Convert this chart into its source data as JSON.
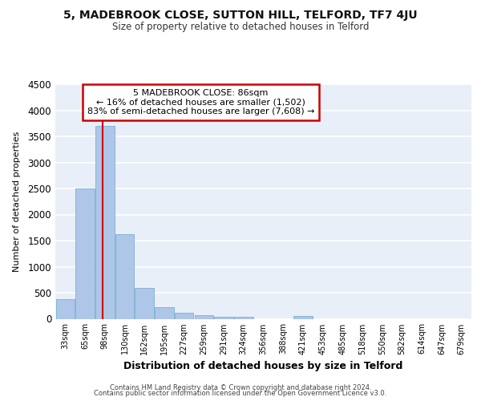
{
  "title1": "5, MADEBROOK CLOSE, SUTTON HILL, TELFORD, TF7 4JU",
  "title2": "Size of property relative to detached houses in Telford",
  "xlabel": "Distribution of detached houses by size in Telford",
  "ylabel": "Number of detached properties",
  "categories": [
    "33sqm",
    "65sqm",
    "98sqm",
    "130sqm",
    "162sqm",
    "195sqm",
    "227sqm",
    "259sqm",
    "291sqm",
    "324sqm",
    "356sqm",
    "388sqm",
    "421sqm",
    "453sqm",
    "485sqm",
    "518sqm",
    "550sqm",
    "582sqm",
    "614sqm",
    "647sqm",
    "679sqm"
  ],
  "values": [
    370,
    2500,
    3700,
    1620,
    590,
    230,
    110,
    65,
    40,
    40,
    0,
    0,
    60,
    0,
    0,
    0,
    0,
    0,
    0,
    0,
    0
  ],
  "bar_color": "#aec6e8",
  "bar_edge_color": "#7bafd4",
  "vline_x": 1.87,
  "vline_color": "#cc0000",
  "annotation_text": "5 MADEBROOK CLOSE: 86sqm\n← 16% of detached houses are smaller (1,502)\n83% of semi-detached houses are larger (7,608) →",
  "annotation_box_color": "#cc0000",
  "ylim": [
    0,
    4500
  ],
  "yticks": [
    0,
    500,
    1000,
    1500,
    2000,
    2500,
    3000,
    3500,
    4000,
    4500
  ],
  "bg_color": "#e8eff8",
  "grid_color": "#ffffff",
  "footer_line1": "Contains HM Land Registry data © Crown copyright and database right 2024.",
  "footer_line2": "Contains public sector information licensed under the Open Government Licence v3.0."
}
